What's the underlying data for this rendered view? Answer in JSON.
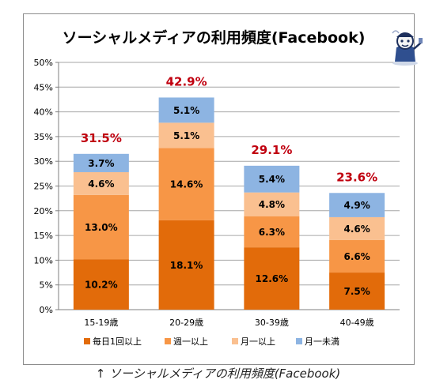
{
  "chart_data": {
    "type": "bar",
    "stacked": true,
    "title": "ソーシャルメディアの利用頻度(Facebook)",
    "categories": [
      "15-19歳",
      "20-29歳",
      "30-39歳",
      "40-49歳"
    ],
    "series": [
      {
        "name": "毎日1回以上",
        "values": [
          10.2,
          18.1,
          12.6,
          7.5
        ],
        "color": "#e26b0a",
        "labels": [
          "10.2%",
          "18.1%",
          "12.6%",
          "7.5%"
        ]
      },
      {
        "name": "週一以上",
        "values": [
          13.0,
          14.6,
          6.3,
          6.6
        ],
        "color": "#f79646",
        "labels": [
          "13.0%",
          "14.6%",
          "6.3%",
          "6.6%"
        ]
      },
      {
        "name": "月一以上",
        "values": [
          4.6,
          5.1,
          4.8,
          4.6
        ],
        "color": "#fac090",
        "labels": [
          "4.6%",
          "5.1%",
          "4.8%",
          "4.6%"
        ]
      },
      {
        "name": "月一未満",
        "values": [
          3.7,
          5.1,
          5.4,
          4.9
        ],
        "color": "#8db4e2",
        "labels": [
          "3.7%",
          "5.1%",
          "5.4%",
          "4.9%"
        ]
      }
    ],
    "totals": [
      31.5,
      42.9,
      29.1,
      23.6
    ],
    "total_labels": [
      "31.5%",
      "42.9%",
      "29.1%",
      "23.6%"
    ],
    "total_color": "#c0000f",
    "ylim": [
      0,
      50
    ],
    "yticks": [
      0,
      5,
      10,
      15,
      20,
      25,
      30,
      35,
      40,
      45,
      50
    ],
    "ytick_labels": [
      "0%",
      "5%",
      "10%",
      "15%",
      "20%",
      "25%",
      "30%",
      "35%",
      "40%",
      "45%",
      "50%"
    ],
    "grid": true,
    "legend_position": "bottom"
  },
  "caption": "↑ ソーシャルメディアの利用頻度(Facebook)",
  "mascot_icon": "mascot-character-icon"
}
